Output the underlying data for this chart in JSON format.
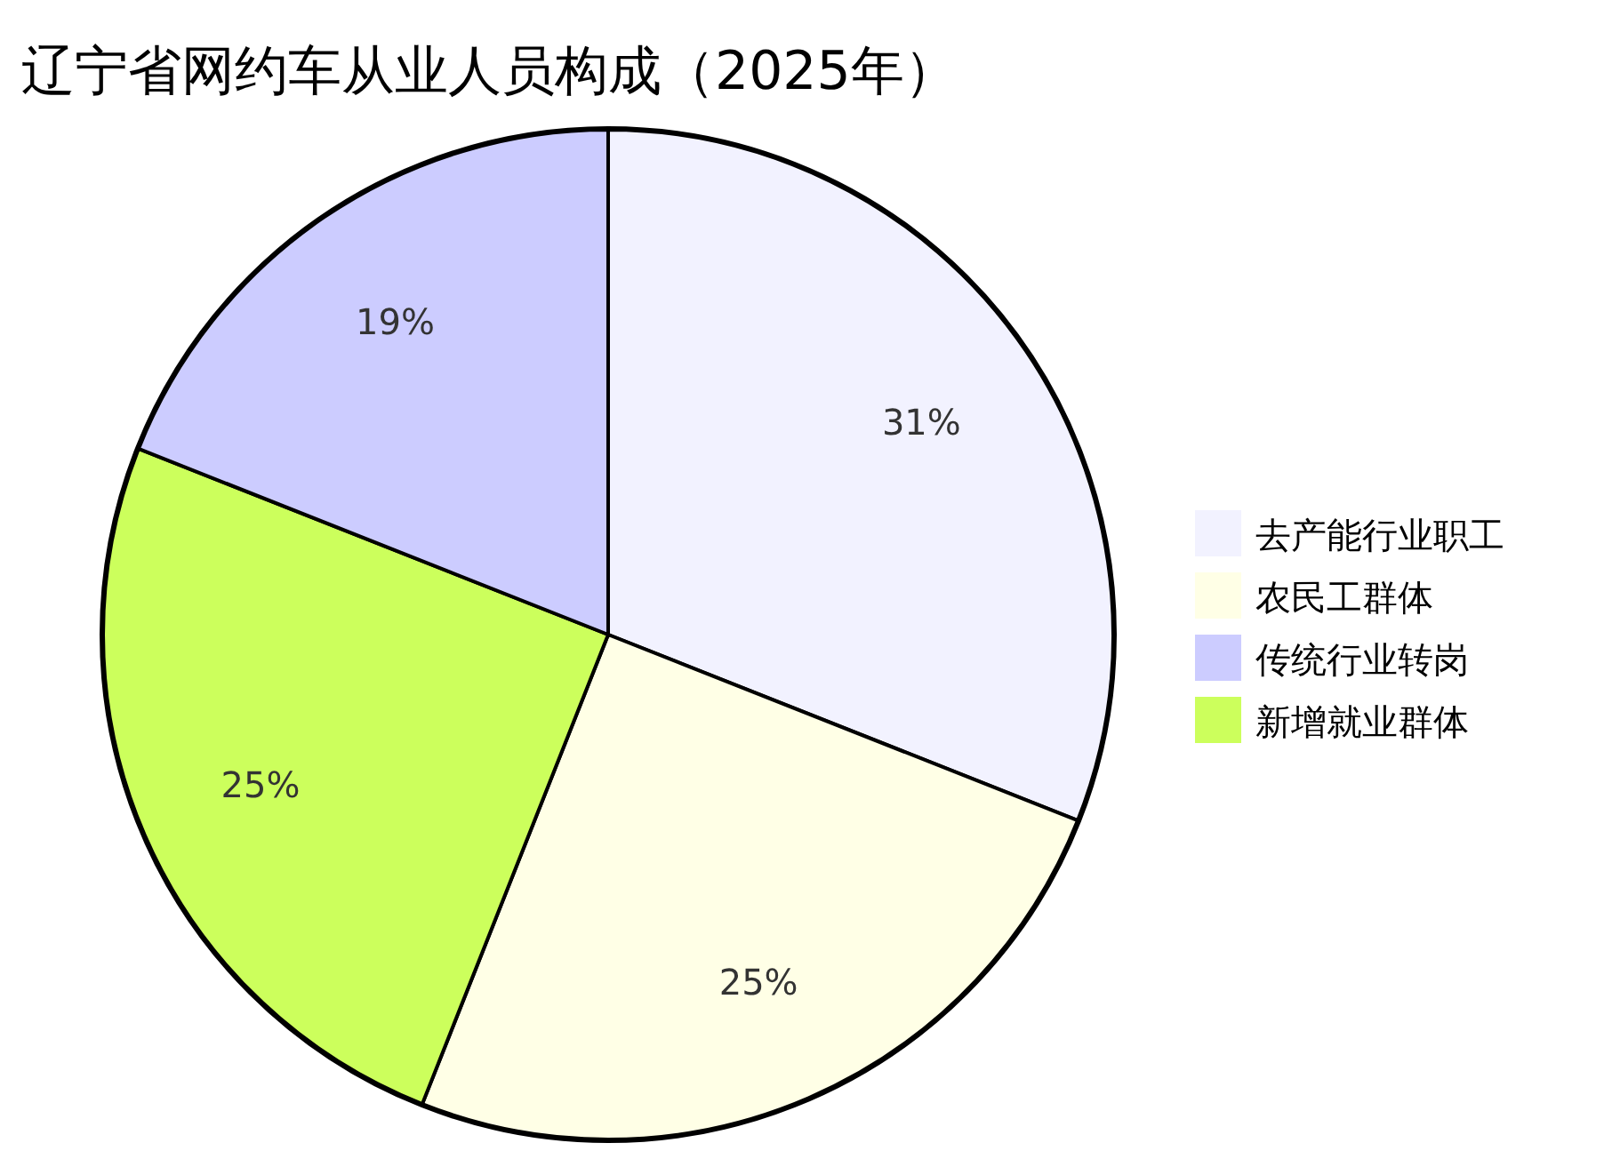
{
  "chart_data": {
    "type": "pie",
    "title": "辽宁省网约车从业人员构成（2025年）",
    "categories": [
      "去产能行业职工",
      "农民工群体",
      "传统行业转岗",
      "新增就业群体"
    ],
    "values": [
      31,
      25,
      19,
      25
    ],
    "value_labels": [
      "31%",
      "25%",
      "19%",
      "25%"
    ],
    "colors": [
      "#f2f2ff",
      "#ffffe6",
      "#ccccff",
      "#ccff5c"
    ],
    "legend": "right"
  }
}
